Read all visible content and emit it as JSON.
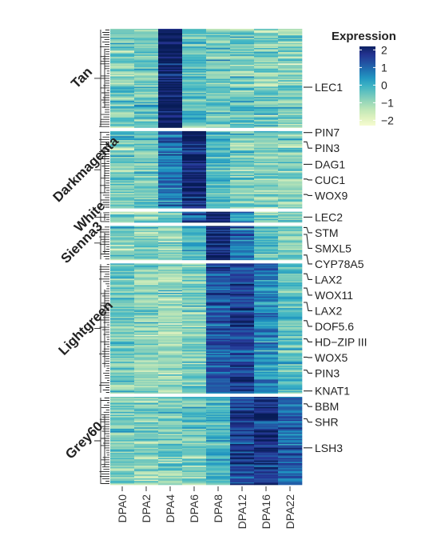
{
  "chart_data": {
    "type": "heatmap",
    "columns": [
      "DPA0",
      "DPA2",
      "DPA4",
      "DPA6",
      "DPA8",
      "DPA12",
      "DPA16",
      "DPA22"
    ],
    "color_scale": {
      "title": "Expression",
      "min": -2.5,
      "max": 2.3,
      "ticks": [
        2,
        1,
        0,
        -1,
        -2
      ],
      "tick_labels": [
        "2",
        "1",
        "0",
        "−1",
        "−2"
      ],
      "colors": [
        "#ffffd9",
        "#e3f3c0",
        "#b9e4b6",
        "#7fcdbb",
        "#41b6c4",
        "#1d91c0",
        "#225ea8",
        "#253494",
        "#081d58"
      ]
    },
    "modules": [
      {
        "name": "Tan",
        "label": "Tan",
        "fraction": 0.225,
        "profile": [
          -0.55,
          -0.5,
          2.3,
          -0.35,
          -0.6,
          -0.55,
          -0.7,
          -0.75
        ],
        "genes": [
          {
            "label": "LEC1",
            "pos": 0.59
          }
        ]
      },
      {
        "name": "Darkmagenta",
        "label": "Darkmagenta",
        "fraction": 0.176,
        "profile": [
          -0.6,
          -0.55,
          0.9,
          2.1,
          -0.15,
          -0.6,
          -0.7,
          -0.75
        ],
        "genes": [
          {
            "label": "PIN7",
            "pos": 0.02
          },
          {
            "label": "PIN3",
            "pos": 0.14
          },
          {
            "label": "DAG1",
            "pos": 0.43
          },
          {
            "label": "CUC1",
            "pos": 0.62
          },
          {
            "label": "WOX9",
            "pos": 0.82
          }
        ]
      },
      {
        "name": "White",
        "label": "White",
        "fraction": 0.025,
        "profile": [
          -0.8,
          -0.8,
          -0.5,
          1.2,
          2.2,
          0.4,
          -0.6,
          -0.7
        ],
        "genes": [
          {
            "label": "LEC2",
            "pos": 0.5
          }
        ]
      },
      {
        "name": "Sienna3",
        "label": "Sienna3",
        "fraction": 0.078,
        "profile": [
          -0.55,
          -0.65,
          -0.75,
          -0.1,
          2.0,
          0.8,
          -0.3,
          -0.55
        ],
        "genes": [
          {
            "label": "STM",
            "pos": 0.05
          },
          {
            "label": "SMXL5",
            "pos": 0.25
          },
          {
            "label": "CYP78A5",
            "pos": 0.85
          }
        ]
      },
      {
        "name": "Lightgreen",
        "label": "Lightgreen",
        "fraction": 0.296,
        "profile": [
          -0.55,
          -0.85,
          -1.0,
          -0.65,
          1.25,
          1.55,
          0.55,
          -0.3
        ],
        "genes": [
          {
            "label": "LAX2",
            "pos": 0.08
          },
          {
            "label": "WOX11",
            "pos": 0.19
          },
          {
            "label": "LAX2",
            "pos": 0.3
          },
          {
            "label": "DOF5.6",
            "pos": 0.44
          },
          {
            "label": "HD−ZIP III",
            "pos": 0.58
          },
          {
            "label": "WOX5",
            "pos": 0.72
          },
          {
            "label": "PIN3",
            "pos": 0.82
          },
          {
            "label": "KNAT1",
            "pos": 0.98
          }
        ]
      },
      {
        "name": "Grey60",
        "label": "Grey60",
        "fraction": 0.2,
        "profile": [
          -0.6,
          -0.85,
          -0.7,
          -0.6,
          -0.05,
          1.55,
          1.75,
          1.0
        ],
        "genes": [
          {
            "label": "BBM",
            "pos": 0.08
          },
          {
            "label": "SHR",
            "pos": 0.25
          },
          {
            "label": "LSH3",
            "pos": 0.58
          }
        ]
      }
    ]
  }
}
